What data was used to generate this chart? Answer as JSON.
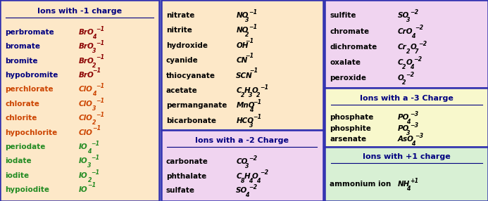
{
  "fig_w": 7.0,
  "fig_h": 2.97,
  "fig_bg": "#b8cce4",
  "col1_bg": "#fde8c8",
  "col2_top_bg": "#fde8c8",
  "col2_bot_bg": "#f0d4f0",
  "col3_top_bg": "#f0d4f0",
  "col3_mid_bg": "#f8f8cc",
  "col3_bot_bg": "#d8f0d4",
  "border_color": "#3030b0",
  "title_color": "#000080",
  "col1": {
    "title": "Ions with -1 charge",
    "rows": [
      [
        "perbromate",
        [
          [
            "BrO",
            "bi"
          ],
          [
            "4",
            "sub"
          ],
          [
            "−1",
            "sup"
          ]
        ],
        "#000080",
        "#8B0000"
      ],
      [
        "bromate",
        [
          [
            "BrO",
            "bi"
          ],
          [
            "3",
            "sub"
          ],
          [
            "−1",
            "sup"
          ]
        ],
        "#000080",
        "#8B0000"
      ],
      [
        "bromite",
        [
          [
            "BrO",
            "bi"
          ],
          [
            "2",
            "sub"
          ],
          [
            "−1",
            "sup"
          ]
        ],
        "#000080",
        "#8B0000"
      ],
      [
        "hypobromite",
        [
          [
            "BrO",
            "bi"
          ],
          [
            "−1",
            "sup"
          ]
        ],
        "#000080",
        "#8B0000"
      ],
      [
        "perchlorate",
        [
          [
            "ClO",
            "bi"
          ],
          [
            "4",
            "sub"
          ],
          [
            "−1",
            "sup"
          ]
        ],
        "#cc4400",
        "#cc4400"
      ],
      [
        "chlorate",
        [
          [
            "ClO",
            "bi"
          ],
          [
            "3",
            "sub"
          ],
          [
            "−1",
            "sup"
          ]
        ],
        "#cc4400",
        "#cc4400"
      ],
      [
        "chlorite",
        [
          [
            "ClO",
            "bi"
          ],
          [
            "2",
            "sub"
          ],
          [
            "−1",
            "sup"
          ]
        ],
        "#cc4400",
        "#cc4400"
      ],
      [
        "hypochlorite",
        [
          [
            "ClO",
            "bi"
          ],
          [
            "−1",
            "sup"
          ]
        ],
        "#cc4400",
        "#cc4400"
      ],
      [
        "periodate",
        [
          [
            "IO",
            "bi"
          ],
          [
            "4",
            "sub"
          ],
          [
            "−1",
            "sup"
          ]
        ],
        "#228B22",
        "#228B22"
      ],
      [
        "iodate",
        [
          [
            "IO",
            "bi"
          ],
          [
            "3",
            "sub"
          ],
          [
            "−1",
            "sup"
          ]
        ],
        "#228B22",
        "#228B22"
      ],
      [
        "iodite",
        [
          [
            "IO",
            "bi"
          ],
          [
            "2",
            "sub"
          ],
          [
            "−1",
            "sup"
          ]
        ],
        "#228B22",
        "#228B22"
      ],
      [
        "hypoiodite",
        [
          [
            "IO",
            "bi"
          ],
          [
            "−1",
            "sup"
          ]
        ],
        "#228B22",
        "#228B22"
      ]
    ]
  },
  "col2_top": {
    "rows": [
      [
        "nitrate",
        [
          [
            "NO",
            "bi"
          ],
          [
            "3",
            "sub"
          ],
          [
            "−1",
            "sup"
          ]
        ],
        "#000000"
      ],
      [
        "nitrite",
        [
          [
            "NO",
            "bi"
          ],
          [
            "2",
            "sub"
          ],
          [
            "−1",
            "sup"
          ]
        ],
        "#000000"
      ],
      [
        "hydroxide",
        [
          [
            "OH",
            "bi"
          ],
          [
            "−1",
            "sup"
          ]
        ],
        "#000000"
      ],
      [
        "cyanide",
        [
          [
            "CN",
            "bi"
          ],
          [
            "−1",
            "sup"
          ]
        ],
        "#000000"
      ],
      [
        "thiocyanate",
        [
          [
            "SCN",
            "bi"
          ],
          [
            "−1",
            "sup"
          ]
        ],
        "#000000"
      ],
      [
        "acetate",
        [
          [
            "C",
            "bi"
          ],
          [
            "2",
            "sub"
          ],
          [
            "H",
            "bi"
          ],
          [
            "3",
            "sub"
          ],
          [
            "O",
            "bi"
          ],
          [
            "2",
            "sub"
          ],
          [
            "−1",
            "sup"
          ]
        ],
        "#000000"
      ],
      [
        "permanganate",
        [
          [
            "MnO",
            "bi"
          ],
          [
            "4",
            "sub"
          ],
          [
            "−1",
            "sup"
          ]
        ],
        "#000000"
      ],
      [
        "bicarbonate",
        [
          [
            "HCO",
            "bi"
          ],
          [
            "3",
            "sub"
          ],
          [
            "−1",
            "sup"
          ]
        ],
        "#000000"
      ]
    ]
  },
  "col2_bot": {
    "title": "Ions with a -2 Charge",
    "rows": [
      [
        "carbonate",
        [
          [
            "CO",
            "bi"
          ],
          [
            "3",
            "sub"
          ],
          [
            "−2",
            "sup"
          ]
        ],
        "#000000"
      ],
      [
        "phthalate",
        [
          [
            "C",
            "bi"
          ],
          [
            "8",
            "sub"
          ],
          [
            "H",
            "bi"
          ],
          [
            "4",
            "sub"
          ],
          [
            "O",
            "bi"
          ],
          [
            "4",
            "sub"
          ],
          [
            "−2",
            "sup"
          ]
        ],
        "#000000"
      ],
      [
        "sulfate",
        [
          [
            "SO",
            "bi"
          ],
          [
            "4",
            "sub"
          ],
          [
            "−2",
            "sup"
          ]
        ],
        "#000000"
      ]
    ]
  },
  "col3_top": {
    "rows": [
      [
        "sulfite",
        [
          [
            "SO",
            "bi"
          ],
          [
            "3",
            "sub"
          ],
          [
            "−2",
            "sup"
          ]
        ],
        "#000000"
      ],
      [
        "chromate",
        [
          [
            "CrO",
            "bi"
          ],
          [
            "4",
            "sub"
          ],
          [
            "−2",
            "sup"
          ]
        ],
        "#000000"
      ],
      [
        "dichromate",
        [
          [
            "Cr",
            "bi"
          ],
          [
            "2",
            "sub"
          ],
          [
            "O",
            "bi"
          ],
          [
            "7",
            "sub"
          ],
          [
            "−2",
            "sup"
          ]
        ],
        "#000000"
      ],
      [
        "oxalate",
        [
          [
            "C",
            "bi"
          ],
          [
            "2",
            "sub"
          ],
          [
            "O",
            "bi"
          ],
          [
            "4",
            "sub"
          ],
          [
            "−2",
            "sup"
          ]
        ],
        "#000000"
      ],
      [
        "peroxide",
        [
          [
            "O",
            "bi"
          ],
          [
            "2",
            "sub"
          ],
          [
            "−2",
            "sup"
          ]
        ],
        "#000000"
      ]
    ]
  },
  "col3_mid": {
    "title": "Ions with a -3 Charge",
    "rows": [
      [
        "phosphate",
        [
          [
            "PO",
            "bi"
          ],
          [
            "4",
            "sub"
          ],
          [
            "−3",
            "sup"
          ]
        ],
        "#000000"
      ],
      [
        "phosphite",
        [
          [
            "PO",
            "bi"
          ],
          [
            "3",
            "sub"
          ],
          [
            "−3",
            "sup"
          ]
        ],
        "#000000"
      ],
      [
        "arsenate",
        [
          [
            "AsO",
            "bi"
          ],
          [
            "4",
            "sub"
          ],
          [
            "−3",
            "sup"
          ]
        ],
        "#000000"
      ]
    ]
  },
  "col3_bot": {
    "title": "Ions with +1 charge",
    "rows": [
      [
        "ammonium ion",
        [
          [
            "NH",
            "bi"
          ],
          [
            "4",
            "sub"
          ],
          [
            "+1",
            "sup"
          ]
        ],
        "#000000"
      ]
    ]
  }
}
